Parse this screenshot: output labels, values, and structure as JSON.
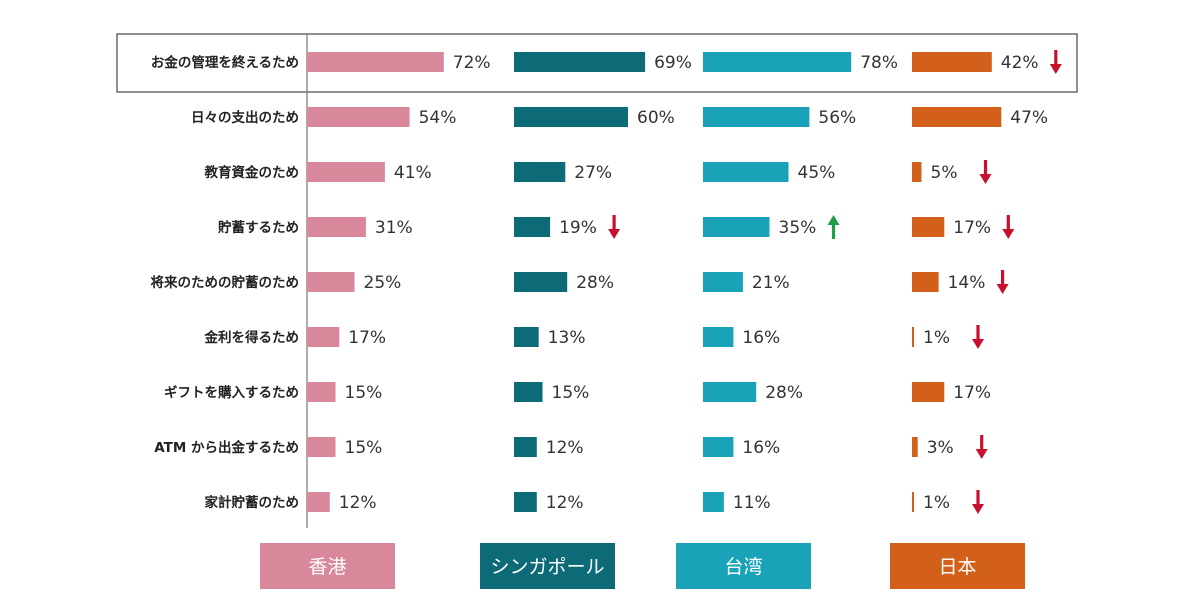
{
  "chart_data": {
    "type": "bar",
    "orientation": "horizontal",
    "layout": "small-multiples",
    "categories": [
      "お金の管理を終えるため",
      "日々の支出のため",
      "教育資金のため",
      "貯蓄するため",
      "将来のための貯蓄のため",
      "金利を得るため",
      "ギフトを購入するため",
      "ATM から出金するため",
      "家計貯蓄のため"
    ],
    "series": [
      {
        "name": "香港",
        "color": "#d9879b",
        "values": [
          72,
          54,
          41,
          31,
          25,
          17,
          15,
          15,
          12
        ],
        "labels": [
          "72%",
          "54%",
          "41%",
          "31%",
          "25%",
          "17%",
          "15%",
          "15%",
          "12%"
        ],
        "trend": [
          "",
          "",
          "",
          "",
          "",
          "",
          "",
          "",
          ""
        ]
      },
      {
        "name": "シンガポール",
        "color": "#0d6b78",
        "values": [
          69,
          60,
          27,
          19,
          28,
          13,
          15,
          12,
          12
        ],
        "labels": [
          "69%",
          "60%",
          "27%",
          "19%",
          "28%",
          "13%",
          "15%",
          "12%",
          "12%"
        ],
        "trend": [
          "",
          "",
          "",
          "down",
          "",
          "",
          "",
          "",
          ""
        ]
      },
      {
        "name": "台湾",
        "color": "#1aa3b8",
        "values": [
          78,
          56,
          45,
          35,
          21,
          16,
          28,
          16,
          11
        ],
        "labels": [
          "78%",
          "56%",
          "45%",
          "35%",
          "21%",
          "16%",
          "28%",
          "16%",
          "11%"
        ],
        "trend": [
          "",
          "",
          "",
          "up",
          "",
          "",
          "",
          "",
          ""
        ]
      },
      {
        "name": "日本",
        "color": "#d2601a",
        "values": [
          42,
          47,
          5,
          17,
          14,
          1,
          17,
          3,
          1
        ],
        "labels": [
          "42%",
          "47%",
          "5%",
          "17%",
          "14%",
          "1%",
          "17%",
          "3%",
          "1%"
        ],
        "trend": [
          "down",
          "",
          "down",
          "down",
          "down",
          "down",
          "",
          "down",
          "down"
        ]
      }
    ],
    "highlight_row": 0,
    "trend_colors": {
      "down": "#c8102e",
      "up": "#1e9e4a"
    },
    "legend": {
      "placement": "bottom",
      "entries": [
        "香港",
        "シンガポール",
        "台湾",
        "日本"
      ]
    },
    "title": "",
    "xlabel": "",
    "ylabel": "",
    "grid": false
  }
}
